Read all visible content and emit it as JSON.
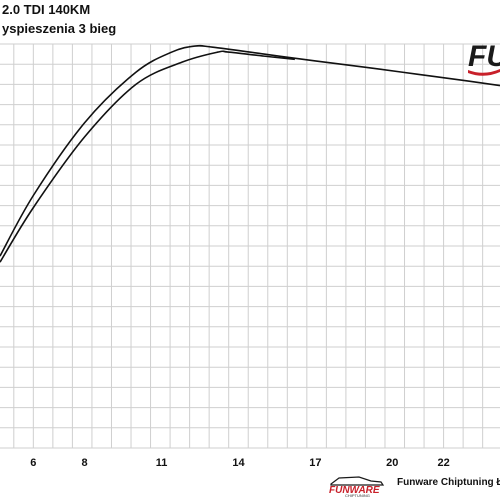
{
  "header": {
    "title": "2.0 TDI 140KM",
    "subtitle": "yspieszenia 3 bieg"
  },
  "logo": {
    "brand_partial": "FU",
    "accent_color": "#c8202a"
  },
  "footer": {
    "brand": "FUNWARE",
    "brand_sub": "CHIPTUNING",
    "text": "Funware Chiptuning Łódź"
  },
  "chart_data": {
    "type": "line",
    "title": "2.0 TDI 140KM",
    "subtitle": "yspieszenia 3 bieg",
    "xlim": [
      4.7,
      24.2
    ],
    "ylim": [
      0,
      1
    ],
    "x_ticks": [
      6,
      8,
      11,
      14,
      17,
      20,
      22
    ],
    "grid": true,
    "legend": "none",
    "series": [
      {
        "points": [
          [
            4.7,
            0.475
          ],
          [
            6.0,
            0.625
          ],
          [
            8.0,
            0.805
          ],
          [
            10.0,
            0.93
          ],
          [
            11.4,
            0.98
          ],
          [
            12.3,
            0.995
          ],
          [
            13.0,
            0.992
          ],
          [
            15.0,
            0.975
          ],
          [
            17.0,
            0.958
          ],
          [
            19.0,
            0.942
          ],
          [
            21.0,
            0.925
          ],
          [
            23.0,
            0.908
          ],
          [
            24.2,
            0.897
          ]
        ]
      },
      {
        "points": [
          [
            4.7,
            0.46
          ],
          [
            6.0,
            0.595
          ],
          [
            8.0,
            0.77
          ],
          [
            10.0,
            0.9
          ],
          [
            11.8,
            0.955
          ],
          [
            13.2,
            0.98
          ],
          [
            13.6,
            0.98
          ],
          [
            15.0,
            0.97
          ],
          [
            16.2,
            0.962
          ]
        ]
      }
    ]
  }
}
